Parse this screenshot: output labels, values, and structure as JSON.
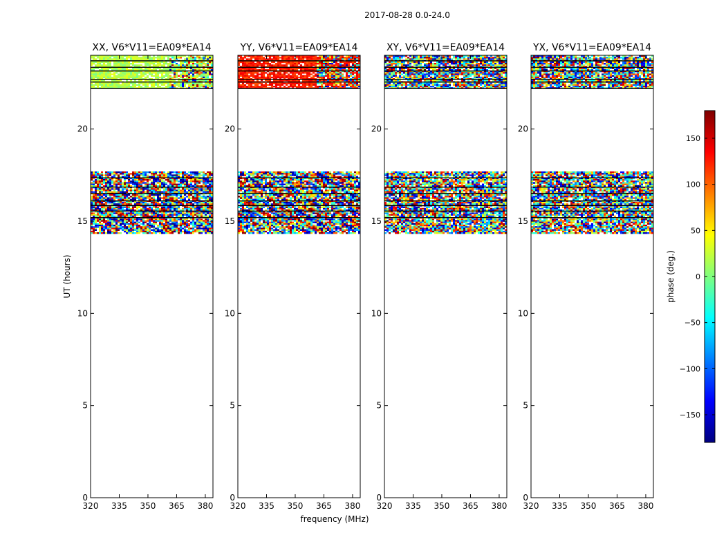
{
  "figure": {
    "suptitle": "2017-08-28 0.0-24.0"
  },
  "chart_data": {
    "type": "heatmap",
    "xlabel": "frequency (MHz)",
    "ylabel": "UT (hours)",
    "xlim": [
      320,
      384
    ],
    "ylim": [
      0,
      24
    ],
    "xticks": [
      320,
      335,
      350,
      365,
      380
    ],
    "yticks": [
      0,
      5,
      10,
      15,
      20
    ],
    "panels": [
      {
        "title": "XX, V6*V11=EA09*EA14",
        "mode": "XX"
      },
      {
        "title": "YY, V6*V11=EA09*EA14",
        "mode": "YY"
      },
      {
        "title": "XY, V6*V11=EA09*EA14",
        "mode": "XY"
      },
      {
        "title": "YX, V6*V11=EA09*EA14",
        "mode": "YX"
      }
    ],
    "data_time_ranges_hours": [
      [
        22.2,
        24.0
      ],
      [
        14.4,
        17.7
      ]
    ],
    "flag_line_times_hours": [
      22.2,
      22.55,
      22.7,
      23.15,
      23.35,
      23.7,
      17.35,
      16.85,
      16.5,
      16.1,
      15.85,
      15.55,
      15.2
    ],
    "colorbar": {
      "label": "phase (deg.)",
      "range": [
        -180,
        180
      ],
      "ticks": [
        150,
        100,
        50,
        0,
        -50,
        -100,
        -150
      ],
      "tick_labels": [
        "150",
        "100",
        "50",
        "0",
        "−50",
        "−100",
        "−150"
      ],
      "colors": [
        "#00007f",
        "#0000ff",
        "#007fff",
        "#00ffff",
        "#7fff7f",
        "#ffff00",
        "#ff7f00",
        "#ff0000",
        "#7f0000"
      ]
    }
  }
}
